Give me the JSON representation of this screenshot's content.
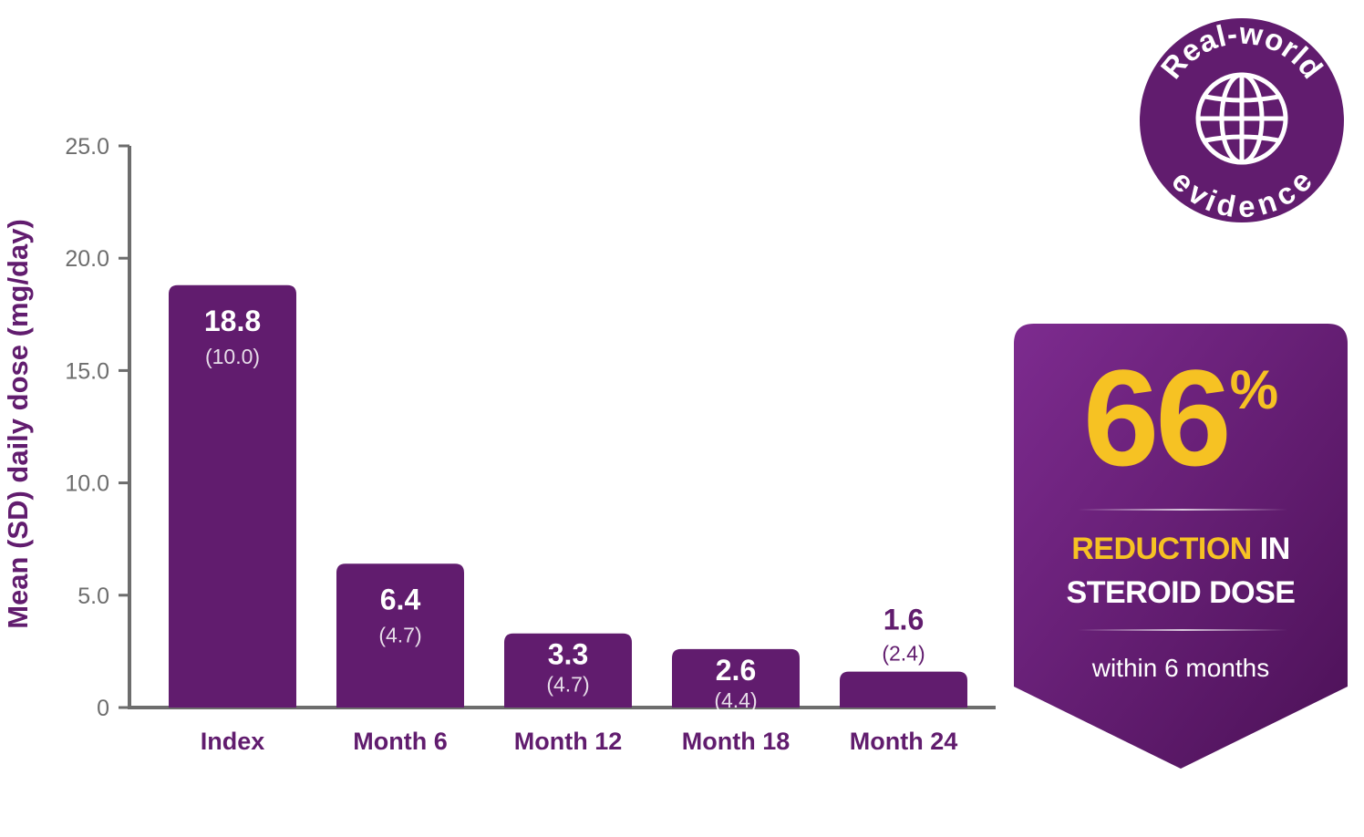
{
  "chart_data": {
    "type": "bar",
    "categories": [
      "Index",
      "Month 6",
      "Month 12",
      "Month 18",
      "Month 24"
    ],
    "values": [
      18.8,
      6.4,
      3.3,
      2.6,
      1.6
    ],
    "value_labels": [
      "18.8",
      "6.4",
      "3.3",
      "2.6",
      "1.6"
    ],
    "sd_labels": [
      "(10.0)",
      "(4.7)",
      "(4.7)",
      "(4.4)",
      "(2.4)"
    ],
    "ylabel": "Mean (SD) daily dose (mg/day)",
    "xlabel": "",
    "ylim": [
      0,
      25
    ],
    "yticks": [
      0,
      5,
      10,
      15,
      20,
      25
    ],
    "ytick_labels": [
      "0",
      "5.0",
      "10.0",
      "15.0",
      "20.0",
      "25.0"
    ],
    "grid": false,
    "bar_color": "#611c6e",
    "axis_color": "#6d6d6d",
    "label_color": "#611c6e"
  },
  "callout": {
    "percent_value": "66",
    "percent_symbol": "%",
    "line1_highlight": "REDUCTION",
    "line1_rest": " IN",
    "line2": "STEROID DOSE",
    "line3": "within 6 months",
    "accent_color": "#f6c223",
    "bg_color_top": "#7a2a8c",
    "bg_color_bottom": "#4e1259"
  },
  "badge": {
    "top_text": "Real-world",
    "bottom_text": "evidence",
    "icon": "globe-icon",
    "color": "#611c6e"
  }
}
